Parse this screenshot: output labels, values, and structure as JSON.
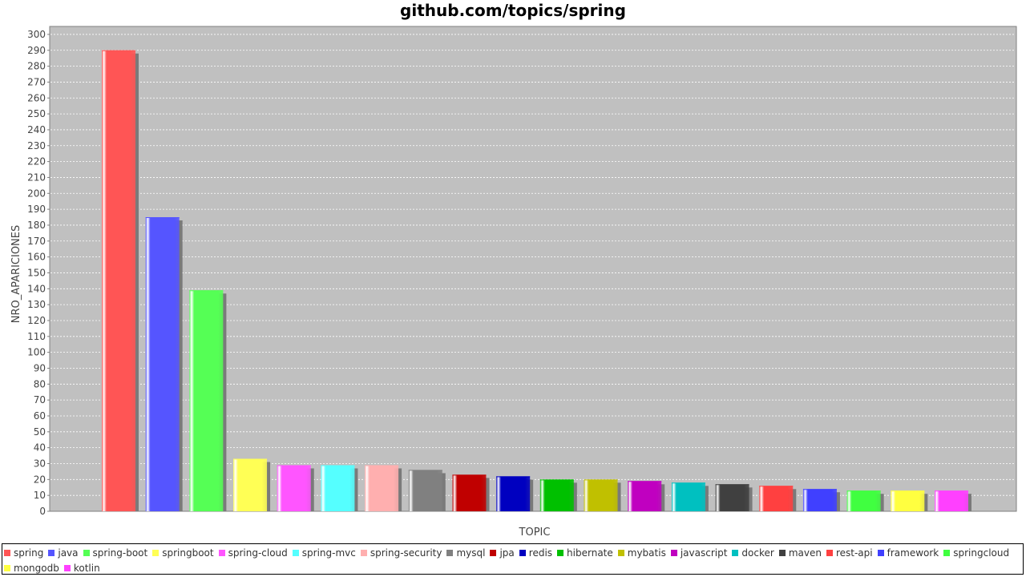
{
  "chart_data": {
    "type": "bar",
    "title": "github.com/topics/spring",
    "xlabel": "TOPIC",
    "ylabel": "NRO_APARICIONES",
    "ylim": [
      0,
      305
    ],
    "ytick_step": 10,
    "grid": true,
    "legend_position": "bottom",
    "series": [
      {
        "name": "spring",
        "value": 290,
        "color": "#ff5555"
      },
      {
        "name": "java",
        "value": 185,
        "color": "#5555ff"
      },
      {
        "name": "spring-boot",
        "value": 139,
        "color": "#55ff55"
      },
      {
        "name": "springboot",
        "value": 33,
        "color": "#ffff55"
      },
      {
        "name": "spring-cloud",
        "value": 29,
        "color": "#ff55ff"
      },
      {
        "name": "spring-mvc",
        "value": 29,
        "color": "#55ffff"
      },
      {
        "name": "spring-security",
        "value": 29,
        "color": "#ffafaf"
      },
      {
        "name": "mysql",
        "value": 26,
        "color": "#808080"
      },
      {
        "name": "jpa",
        "value": 23,
        "color": "#c00000"
      },
      {
        "name": "redis",
        "value": 22,
        "color": "#0000c0"
      },
      {
        "name": "hibernate",
        "value": 20,
        "color": "#00c000"
      },
      {
        "name": "mybatis",
        "value": 20,
        "color": "#c0c000"
      },
      {
        "name": "javascript",
        "value": 19,
        "color": "#c000c0"
      },
      {
        "name": "docker",
        "value": 18,
        "color": "#00c0c0"
      },
      {
        "name": "maven",
        "value": 17,
        "color": "#404040"
      },
      {
        "name": "rest-api",
        "value": 16,
        "color": "#ff4040"
      },
      {
        "name": "framework",
        "value": 14,
        "color": "#4040ff"
      },
      {
        "name": "springcloud",
        "value": 13,
        "color": "#40ff40"
      },
      {
        "name": "mongodb",
        "value": 13,
        "color": "#ffff40"
      },
      {
        "name": "kotlin",
        "value": 13,
        "color": "#ff40ff"
      }
    ]
  }
}
